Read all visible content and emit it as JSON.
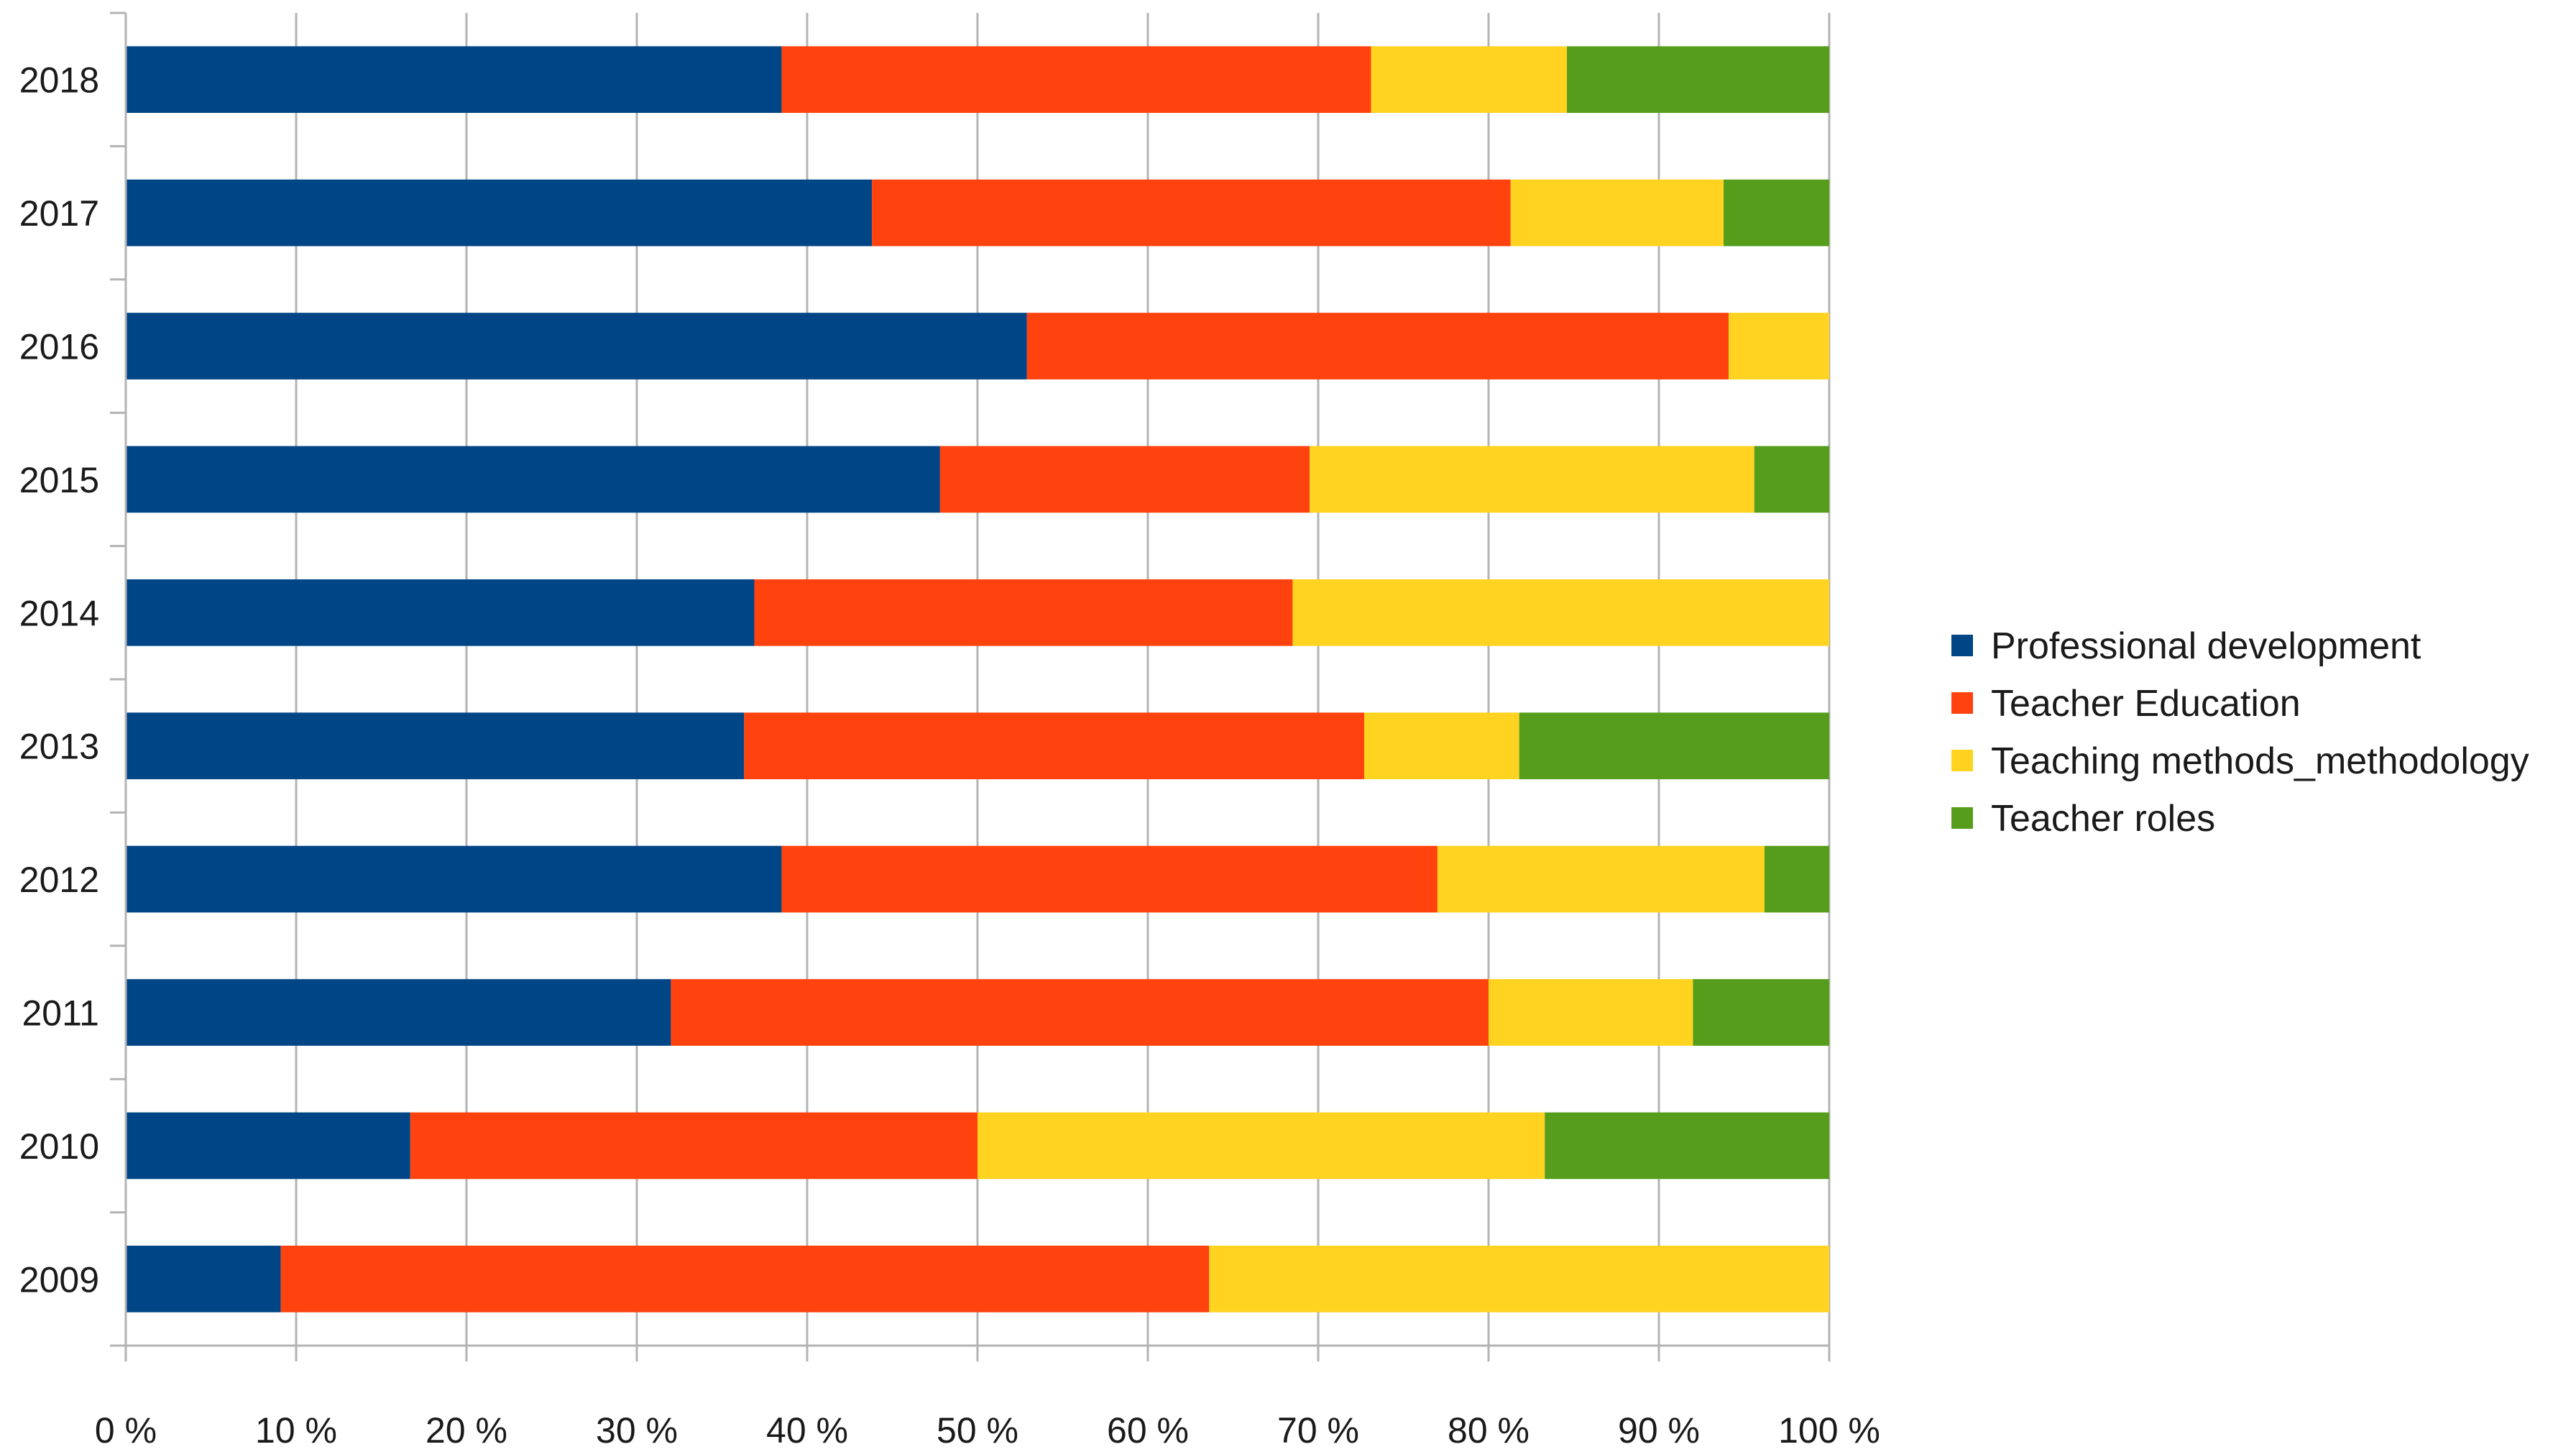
{
  "chart_data": {
    "type": "bar",
    "orientation": "horizontal",
    "stacked": true,
    "normalized": true,
    "title": "",
    "xlabel": "",
    "ylabel": "",
    "xlim": [
      0,
      100
    ],
    "x_ticks": [
      "0 %",
      "10 %",
      "20 %",
      "30 %",
      "40 %",
      "50 %",
      "60 %",
      "70 %",
      "80 %",
      "90 %",
      "100 %"
    ],
    "grid": true,
    "legend_position": "right",
    "categories": [
      "2018",
      "2017",
      "2016",
      "2015",
      "2014",
      "2013",
      "2012",
      "2011",
      "2010",
      "2009"
    ],
    "series": [
      {
        "name": "Professional development",
        "color": "#004586",
        "values": [
          38.5,
          43.8,
          52.9,
          47.8,
          36.9,
          36.3,
          38.5,
          32.0,
          16.7,
          9.1
        ]
      },
      {
        "name": "Teacher Education",
        "color": "#ff420e",
        "values": [
          34.6,
          37.5,
          41.2,
          21.7,
          31.6,
          36.4,
          38.5,
          48.0,
          33.3,
          54.5
        ]
      },
      {
        "name": "Teaching methods_methodology",
        "color": "#ffd320",
        "values": [
          11.5,
          12.5,
          5.9,
          26.1,
          31.5,
          9.1,
          19.2,
          12.0,
          33.3,
          36.4
        ]
      },
      {
        "name": "Teacher roles",
        "color": "#579d1c",
        "values": [
          15.4,
          6.2,
          0,
          4.4,
          0,
          18.2,
          3.8,
          8.0,
          16.7,
          0
        ]
      }
    ]
  }
}
